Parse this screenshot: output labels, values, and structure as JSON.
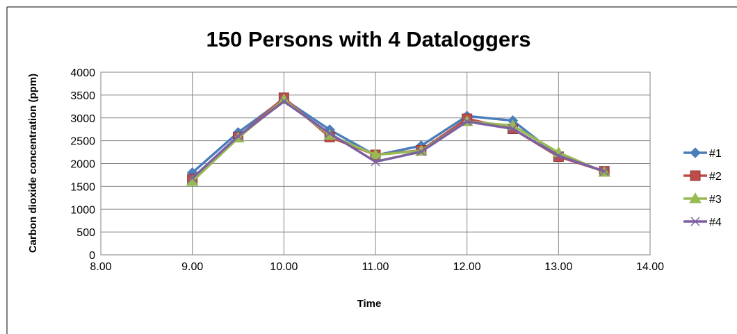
{
  "chart_data": {
    "type": "line",
    "title": "150 Persons with 4 Dataloggers",
    "xlabel": "Time",
    "ylabel": "Carbon dioxide concentration (ppm)",
    "xlim": [
      8.0,
      14.0
    ],
    "ylim": [
      0,
      4000
    ],
    "x_ticks": [
      "8.00",
      "9.00",
      "10.00",
      "11.00",
      "12.00",
      "13.00",
      "14.00"
    ],
    "y_ticks": [
      "0",
      "500",
      "1000",
      "1500",
      "2000",
      "2500",
      "3000",
      "3500",
      "4000"
    ],
    "grid": true,
    "legend_position": "right",
    "x": [
      9.0,
      9.5,
      10.0,
      10.5,
      11.0,
      11.5,
      12.0,
      12.5,
      13.0,
      13.5
    ],
    "series": [
      {
        "name": "#1",
        "color": "#4A7EBB",
        "marker": "diamond",
        "values": [
          1800,
          2680,
          3410,
          2740,
          2180,
          2390,
          3040,
          2940,
          2160,
          1830
        ]
      },
      {
        "name": "#2",
        "color": "#BE4B48",
        "marker": "square",
        "values": [
          1660,
          2580,
          3440,
          2580,
          2190,
          2290,
          2980,
          2760,
          2150,
          1830
        ]
      },
      {
        "name": "#3",
        "color": "#98B954",
        "marker": "triangle",
        "values": [
          1610,
          2560,
          3400,
          2620,
          2190,
          2280,
          2920,
          2830,
          2240,
          1810
        ]
      },
      {
        "name": "#4",
        "color": "#7D60A0",
        "marker": "x",
        "values": [
          1680,
          2600,
          3360,
          2660,
          2040,
          2260,
          2920,
          2760,
          2170,
          1830
        ]
      }
    ]
  }
}
